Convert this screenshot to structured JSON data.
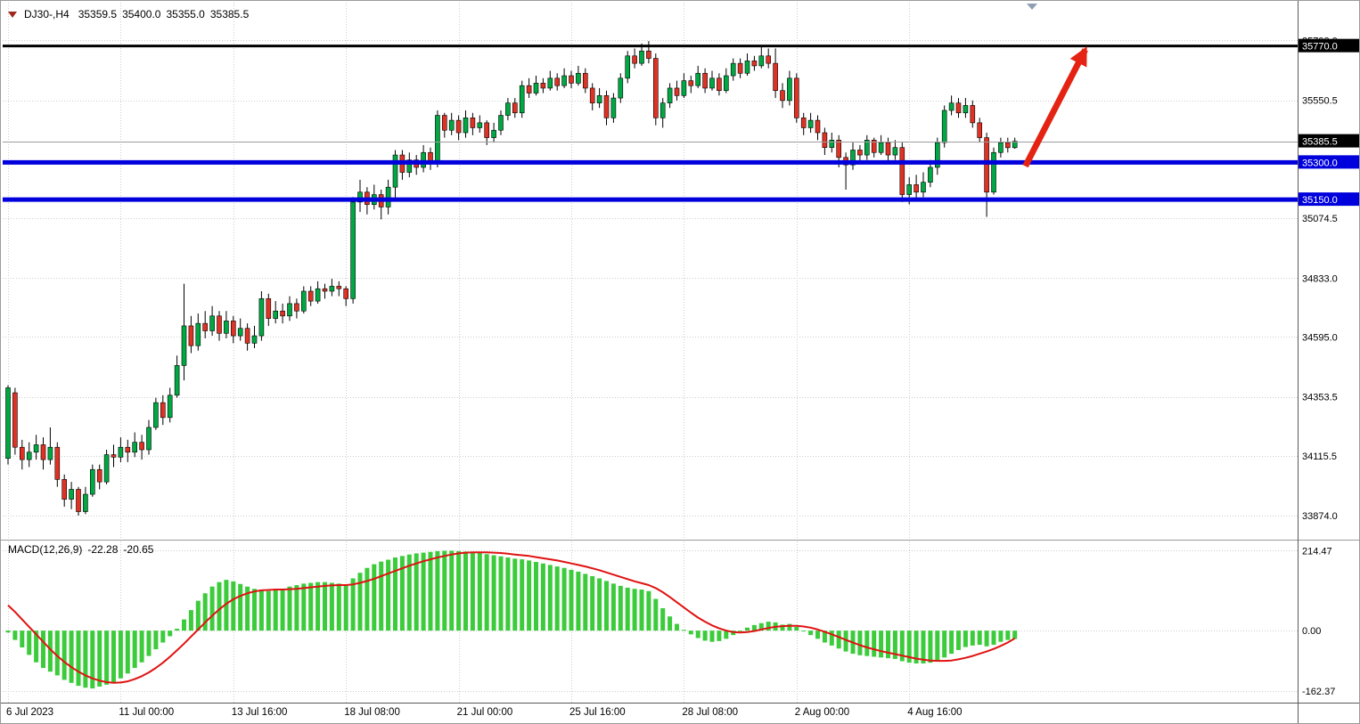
{
  "title": {
    "symbol_period": "DJ30-,H4",
    "open": "35359.5",
    "high": "35400.0",
    "low": "35355.0",
    "close": "35385.5"
  },
  "macd_label": {
    "name": "MACD(12,26,9)",
    "macd_value": "-22.28",
    "signal_value": "-20.65"
  },
  "colors": {
    "up": "#00A843",
    "down": "#E03224",
    "wick": "#000000",
    "grid": "#CDCDCD",
    "macd_bar": "#3BCB3B",
    "macd_signal": "#E01212",
    "arrow": "#E42313",
    "level_blue": "#0000DC",
    "level_black": "#000000",
    "badge_text": "#FFFFFF",
    "axis_text": "#000000",
    "current_price_line": "#9D9D9D"
  },
  "chart_data": {
    "type": "candlestick",
    "symbol": "DJ30-",
    "timeframe": "H4",
    "title": "DJ30-,H4 35359.5 35400.0 35355.0 35385.5",
    "price_range": [
      33784,
      35945
    ],
    "price_gridlines": [
      {
        "value": 35793.0,
        "label": "35793.0"
      },
      {
        "value": 35550.5,
        "label": "35550.5"
      },
      {
        "value": 35074.5,
        "label": "35074.5"
      },
      {
        "value": 34833.0,
        "label": "34833.0"
      },
      {
        "value": 34595.0,
        "label": "34595.0"
      },
      {
        "value": 34353.5,
        "label": "34353.5"
      },
      {
        "value": 34115.5,
        "label": "34115.5"
      },
      {
        "value": 33874.0,
        "label": "33874.0"
      }
    ],
    "price_badges": [
      {
        "label": "35770.0",
        "price": 35770.0,
        "bg": "#000000"
      },
      {
        "label": "35385.5",
        "price": 35385.5,
        "bg": "#000000"
      },
      {
        "label": "35300.0",
        "price": 35300.0,
        "bg": "#0000DC"
      },
      {
        "label": "35150.0",
        "price": 35150.0,
        "bg": "#0000DC"
      }
    ],
    "levels": [
      {
        "name": "resistance",
        "price": 35770.0,
        "color": "#000000",
        "width": 3
      },
      {
        "name": "support-1",
        "price": 35300.0,
        "color": "#0000DC",
        "width": 5
      },
      {
        "name": "support-2",
        "price": 35150.0,
        "color": "#0000DC",
        "width": 5
      }
    ],
    "current_price": {
      "value": 35385.5,
      "label": "35385.5"
    },
    "x_axis": {
      "labels": [
        {
          "index": 0,
          "text": "6 Jul 2023"
        },
        {
          "index": 16,
          "text": "11 Jul 00:00"
        },
        {
          "index": 32,
          "text": "13 Jul 16:00"
        },
        {
          "index": 48,
          "text": "18 Jul 08:00"
        },
        {
          "index": 64,
          "text": "21 Jul 00:00"
        },
        {
          "index": 80,
          "text": "25 Jul 16:00"
        },
        {
          "index": 96,
          "text": "28 Jul 08:00"
        },
        {
          "index": 112,
          "text": "2 Aug 00:00"
        },
        {
          "index": 128,
          "text": "4 Aug 16:00"
        }
      ]
    },
    "candles": [
      [
        34105,
        34400,
        34080,
        34390
      ],
      [
        34370,
        34390,
        34120,
        34150
      ],
      [
        34150,
        34180,
        34060,
        34100
      ],
      [
        34100,
        34170,
        34070,
        34130
      ],
      [
        34130,
        34200,
        34100,
        34160
      ],
      [
        34160,
        34190,
        34060,
        34100
      ],
      [
        34100,
        34230,
        34080,
        34150
      ],
      [
        34150,
        34170,
        33990,
        34020
      ],
      [
        34020,
        34040,
        33910,
        33940
      ],
      [
        33940,
        34010,
        33900,
        33980
      ],
      [
        33980,
        33990,
        33874,
        33890
      ],
      [
        33890,
        33990,
        33880,
        33960
      ],
      [
        33960,
        34080,
        33950,
        34060
      ],
      [
        34060,
        34080,
        33980,
        34010
      ],
      [
        34010,
        34140,
        34000,
        34120
      ],
      [
        34120,
        34160,
        34070,
        34110
      ],
      [
        34110,
        34190,
        34090,
        34150
      ],
      [
        34150,
        34180,
        34090,
        34130
      ],
      [
        34130,
        34210,
        34110,
        34170
      ],
      [
        34170,
        34200,
        34100,
        34140
      ],
      [
        34140,
        34260,
        34120,
        34230
      ],
      [
        34230,
        34350,
        34220,
        34330
      ],
      [
        34330,
        34360,
        34240,
        34270
      ],
      [
        34270,
        34390,
        34250,
        34360
      ],
      [
        34360,
        34520,
        34350,
        34480
      ],
      [
        34480,
        34810,
        34420,
        34640
      ],
      [
        34640,
        34680,
        34530,
        34560
      ],
      [
        34560,
        34690,
        34540,
        34650
      ],
      [
        34650,
        34700,
        34590,
        34620
      ],
      [
        34620,
        34720,
        34600,
        34680
      ],
      [
        34680,
        34700,
        34580,
        34610
      ],
      [
        34610,
        34700,
        34590,
        34660
      ],
      [
        34660,
        34680,
        34570,
        34600
      ],
      [
        34600,
        34670,
        34580,
        34630
      ],
      [
        34630,
        34650,
        34540,
        34570
      ],
      [
        34570,
        34640,
        34550,
        34600
      ],
      [
        34600,
        34780,
        34580,
        34750
      ],
      [
        34750,
        34770,
        34640,
        34670
      ],
      [
        34670,
        34740,
        34650,
        34700
      ],
      [
        34700,
        34730,
        34650,
        34680
      ],
      [
        34680,
        34760,
        34660,
        34730
      ],
      [
        34730,
        34750,
        34670,
        34700
      ],
      [
        34700,
        34800,
        34690,
        34780
      ],
      [
        34780,
        34800,
        34720,
        34740
      ],
      [
        34740,
        34820,
        34730,
        34790
      ],
      [
        34790,
        34810,
        34750,
        34780
      ],
      [
        34780,
        34830,
        34760,
        34800
      ],
      [
        34800,
        34820,
        34760,
        34790
      ],
      [
        34790,
        34800,
        34720,
        34750
      ],
      [
        34750,
        35160,
        34730,
        35140
      ],
      [
        35140,
        35230,
        35100,
        35180
      ],
      [
        35180,
        35200,
        35090,
        35130
      ],
      [
        35130,
        35210,
        35110,
        35170
      ],
      [
        35170,
        35190,
        35070,
        35120
      ],
      [
        35120,
        35230,
        35090,
        35200
      ],
      [
        35200,
        35350,
        35150,
        35330
      ],
      [
        35330,
        35350,
        35230,
        35260
      ],
      [
        35260,
        35340,
        35240,
        35310
      ],
      [
        35310,
        35330,
        35250,
        35280
      ],
      [
        35280,
        35370,
        35260,
        35340
      ],
      [
        35340,
        35360,
        35270,
        35300
      ],
      [
        35300,
        35510,
        35280,
        35490
      ],
      [
        35490,
        35500,
        35400,
        35430
      ],
      [
        35430,
        35500,
        35410,
        35470
      ],
      [
        35470,
        35490,
        35390,
        35420
      ],
      [
        35420,
        35510,
        35400,
        35480
      ],
      [
        35480,
        35500,
        35410,
        35440
      ],
      [
        35440,
        35490,
        35420,
        35460
      ],
      [
        35460,
        35470,
        35370,
        35400
      ],
      [
        35400,
        35460,
        35380,
        35430
      ],
      [
        35430,
        35510,
        35410,
        35490
      ],
      [
        35490,
        35560,
        35470,
        35540
      ],
      [
        35540,
        35560,
        35480,
        35500
      ],
      [
        35500,
        35630,
        35480,
        35610
      ],
      [
        35610,
        35640,
        35560,
        35580
      ],
      [
        35580,
        35650,
        35570,
        35620
      ],
      [
        35620,
        35640,
        35580,
        35600
      ],
      [
        35600,
        35670,
        35590,
        35640
      ],
      [
        35640,
        35660,
        35590,
        35610
      ],
      [
        35610,
        35680,
        35600,
        35650
      ],
      [
        35650,
        35670,
        35600,
        35620
      ],
      [
        35620,
        35690,
        35610,
        35660
      ],
      [
        35660,
        35680,
        35580,
        35600
      ],
      [
        35600,
        35620,
        35510,
        35540
      ],
      [
        35540,
        35600,
        35520,
        35570
      ],
      [
        35570,
        35590,
        35450,
        35480
      ],
      [
        35480,
        35580,
        35460,
        35560
      ],
      [
        35560,
        35660,
        35540,
        35640
      ],
      [
        35640,
        35750,
        35620,
        35730
      ],
      [
        35730,
        35760,
        35680,
        35700
      ],
      [
        35700,
        35780,
        35690,
        35750
      ],
      [
        35750,
        35790,
        35700,
        35720
      ],
      [
        35720,
        35740,
        35450,
        35480
      ],
      [
        35480,
        35560,
        35440,
        35540
      ],
      [
        35540,
        35620,
        35520,
        35600
      ],
      [
        35600,
        35630,
        35550,
        35570
      ],
      [
        35570,
        35660,
        35560,
        35630
      ],
      [
        35630,
        35650,
        35580,
        35610
      ],
      [
        35610,
        35690,
        35600,
        35660
      ],
      [
        35660,
        35680,
        35580,
        35600
      ],
      [
        35600,
        35670,
        35590,
        35640
      ],
      [
        35640,
        35660,
        35570,
        35590
      ],
      [
        35590,
        35680,
        35580,
        35650
      ],
      [
        35650,
        35720,
        35630,
        35700
      ],
      [
        35700,
        35720,
        35640,
        35660
      ],
      [
        35660,
        35740,
        35650,
        35710
      ],
      [
        35710,
        35730,
        35670,
        35690
      ],
      [
        35690,
        35770,
        35680,
        35730
      ],
      [
        35730,
        35760,
        35680,
        35700
      ],
      [
        35700,
        35760,
        35560,
        35590
      ],
      [
        35590,
        35620,
        35520,
        35550
      ],
      [
        35550,
        35670,
        35530,
        35640
      ],
      [
        35640,
        35660,
        35460,
        35480
      ],
      [
        35480,
        35500,
        35410,
        35440
      ],
      [
        35440,
        35500,
        35420,
        35470
      ],
      [
        35470,
        35490,
        35390,
        35420
      ],
      [
        35420,
        35440,
        35330,
        35360
      ],
      [
        35360,
        35420,
        35340,
        35390
      ],
      [
        35390,
        35410,
        35280,
        35320
      ],
      [
        35320,
        35340,
        35190,
        35290
      ],
      [
        35290,
        35380,
        35270,
        35350
      ],
      [
        35350,
        35370,
        35300,
        35330
      ],
      [
        35330,
        35410,
        35310,
        35390
      ],
      [
        35390,
        35400,
        35320,
        35340
      ],
      [
        35340,
        35410,
        35330,
        35380
      ],
      [
        35380,
        35400,
        35300,
        35330
      ],
      [
        35330,
        35390,
        35310,
        35360
      ],
      [
        35360,
        35380,
        35140,
        35170
      ],
      [
        35170,
        35240,
        35130,
        35210
      ],
      [
        35210,
        35250,
        35150,
        35180
      ],
      [
        35180,
        35260,
        35160,
        35220
      ],
      [
        35220,
        35310,
        35200,
        35280
      ],
      [
        35280,
        35400,
        35250,
        35380
      ],
      [
        35380,
        35530,
        35360,
        35510
      ],
      [
        35510,
        35570,
        35490,
        35540
      ],
      [
        35540,
        35560,
        35480,
        35500
      ],
      [
        35500,
        35560,
        35480,
        35530
      ],
      [
        35530,
        35550,
        35440,
        35460
      ],
      [
        35460,
        35480,
        35380,
        35400
      ],
      [
        35400,
        35420,
        35080,
        35180
      ],
      [
        35180,
        35360,
        35170,
        35340
      ],
      [
        35340,
        35400,
        35320,
        35380
      ],
      [
        35380,
        35400,
        35340,
        35359.5
      ],
      [
        35359.5,
        35400,
        35355,
        35385.5
      ]
    ],
    "macd": {
      "name": "MACD(12,26,9)",
      "range": [
        -193,
        239
      ],
      "ticks": [
        {
          "value": 214.47,
          "label": "214.47"
        },
        {
          "value": 0,
          "label": "0.00"
        },
        {
          "value": -162.37,
          "label": "-162.37"
        }
      ],
      "histogram": [
        -5,
        -25,
        -45,
        -65,
        -85,
        -100,
        -110,
        -120,
        -132,
        -140,
        -148,
        -153,
        -155,
        -150,
        -145,
        -138,
        -128,
        -115,
        -100,
        -85,
        -68,
        -50,
        -32,
        -15,
        5,
        30,
        55,
        80,
        100,
        118,
        130,
        136,
        132,
        125,
        118,
        112,
        108,
        106,
        108,
        112,
        118,
        122,
        126,
        128,
        130,
        130,
        128,
        126,
        124,
        140,
        155,
        168,
        178,
        185,
        190,
        196,
        200,
        204,
        207,
        209,
        211,
        213,
        214,
        214,
        213,
        212,
        210,
        208,
        205,
        202,
        199,
        196,
        193,
        191,
        188,
        184,
        180,
        176,
        172,
        168,
        163,
        158,
        152,
        146,
        140,
        133,
        126,
        120,
        115,
        112,
        110,
        106,
        85,
        60,
        38,
        18,
        2,
        -10,
        -20,
        -27,
        -30,
        -28,
        -22,
        -12,
        -2,
        8,
        15,
        20,
        24,
        22,
        16,
        18,
        10,
        -2,
        -12,
        -22,
        -32,
        -40,
        -48,
        -56,
        -62,
        -66,
        -68,
        -70,
        -72,
        -74,
        -76,
        -82,
        -86,
        -88,
        -88,
        -86,
        -80,
        -72,
        -62,
        -52,
        -44,
        -40,
        -38,
        -42,
        -38,
        -30,
        -25,
        -22.28
      ],
      "signal": [
        68,
        50,
        30,
        10,
        -10,
        -30,
        -50,
        -68,
        -84,
        -98,
        -110,
        -120,
        -128,
        -134,
        -138,
        -140,
        -139,
        -136,
        -130,
        -122,
        -112,
        -100,
        -86,
        -70,
        -53,
        -35,
        -16,
        3,
        22,
        40,
        57,
        72,
        84,
        93,
        100,
        105,
        108,
        109,
        110,
        110,
        111,
        112,
        114,
        116,
        118,
        120,
        121,
        122,
        122,
        124,
        128,
        133,
        139,
        146,
        153,
        160,
        167,
        174,
        180,
        186,
        191,
        196,
        200,
        204,
        207,
        209,
        210,
        210,
        210,
        209,
        208,
        206,
        204,
        202,
        200,
        197,
        194,
        191,
        188,
        184,
        180,
        176,
        172,
        167,
        162,
        156,
        150,
        144,
        138,
        132,
        127,
        122,
        114,
        103,
        90,
        76,
        62,
        48,
        35,
        24,
        14,
        6,
        0,
        -4,
        -5,
        -4,
        -1,
        3,
        7,
        10,
        12,
        13,
        13,
        11,
        8,
        3,
        -3,
        -10,
        -17,
        -25,
        -32,
        -39,
        -45,
        -50,
        -55,
        -59,
        -63,
        -67,
        -71,
        -75,
        -78,
        -80,
        -81,
        -81,
        -80,
        -77,
        -73,
        -68,
        -62,
        -56,
        -49,
        -41,
        -32,
        -20.65
      ]
    },
    "annotations": {
      "arrow": {
        "start_index": 144.5,
        "start_price": 35285,
        "end_index": 153,
        "end_price": 35755
      }
    }
  }
}
